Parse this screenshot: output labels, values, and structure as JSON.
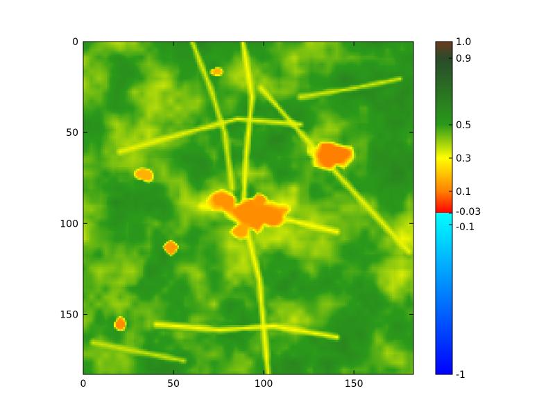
{
  "chart_data": {
    "type": "heatmap",
    "title": "",
    "xlabel": "",
    "ylabel": "",
    "grid": false,
    "image_size": [
      183,
      183
    ],
    "xlim": [
      0,
      183
    ],
    "ylim": [
      183,
      0
    ],
    "xticks": [
      {
        "value": 0,
        "label": "0"
      },
      {
        "value": 50,
        "label": "50"
      },
      {
        "value": 100,
        "label": "100"
      },
      {
        "value": 150,
        "label": "150"
      }
    ],
    "yticks": [
      {
        "value": 0,
        "label": "0"
      },
      {
        "value": 50,
        "label": "50"
      },
      {
        "value": 100,
        "label": "100"
      },
      {
        "value": 150,
        "label": "150"
      }
    ],
    "colorbar": {
      "placement": "right",
      "range": [
        -1,
        1
      ],
      "ticks": [
        {
          "value": 1.0,
          "label": "1.0"
        },
        {
          "value": 0.9,
          "label": "0.9"
        },
        {
          "value": 0.5,
          "label": "0.5"
        },
        {
          "value": 0.3,
          "label": "0.3"
        },
        {
          "value": 0.1,
          "label": "0.1"
        },
        {
          "value": -0.03,
          "label": "-0.03"
        },
        {
          "value": -0.1,
          "label": "-0.1"
        },
        {
          "value": -1,
          "label": "-1"
        }
      ],
      "stops": [
        {
          "value": -1.0,
          "color": "#0000ff"
        },
        {
          "value": -0.03,
          "color": "#00ffff"
        },
        {
          "value": -0.0301,
          "color": "#ff0000"
        },
        {
          "value": 0.1,
          "color": "#ff8000"
        },
        {
          "value": 0.3,
          "color": "#ffff00"
        },
        {
          "value": 0.5,
          "color": "#2a9a1a"
        },
        {
          "value": 0.9,
          "color": "#2a4a2a"
        },
        {
          "value": 1.0,
          "color": "#6b3b1f"
        }
      ]
    },
    "features": [
      {
        "type": "road",
        "points": [
          [
            98,
            25
          ],
          [
            140,
            72
          ],
          [
            180,
            115
          ]
        ],
        "value": 0.32
      },
      {
        "type": "road",
        "points": [
          [
            88,
            0
          ],
          [
            93,
            30
          ],
          [
            90,
            60
          ],
          [
            88,
            95
          ],
          [
            97,
            130
          ],
          [
            102,
            183
          ]
        ],
        "value": 0.3
      },
      {
        "type": "road",
        "points": [
          [
            65,
            90
          ],
          [
            90,
            94
          ],
          [
            115,
            98
          ],
          [
            140,
            104
          ]
        ],
        "value": 0.3
      },
      {
        "type": "road",
        "points": [
          [
            40,
            155
          ],
          [
            75,
            158
          ],
          [
            105,
            156
          ],
          [
            140,
            162
          ]
        ],
        "value": 0.3
      },
      {
        "type": "road",
        "points": [
          [
            20,
            60
          ],
          [
            55,
            50
          ],
          [
            85,
            42
          ],
          [
            120,
            45
          ]
        ],
        "value": 0.32
      },
      {
        "type": "road",
        "points": [
          [
            60,
            0
          ],
          [
            70,
            25
          ],
          [
            78,
            50
          ],
          [
            82,
            80
          ]
        ],
        "value": 0.33
      },
      {
        "type": "road",
        "points": [
          [
            5,
            165
          ],
          [
            30,
            170
          ],
          [
            55,
            175
          ]
        ],
        "value": 0.35
      },
      {
        "type": "road",
        "points": [
          [
            120,
            30
          ],
          [
            150,
            25
          ],
          [
            175,
            20
          ]
        ],
        "value": 0.34
      },
      {
        "type": "patch",
        "center": [
          137,
          62
        ],
        "size": [
          14,
          8
        ],
        "value": 0.1
      },
      {
        "type": "patch",
        "center": [
          95,
          94
        ],
        "size": [
          18,
          10
        ],
        "value": 0.12
      },
      {
        "type": "patch",
        "center": [
          78,
          87
        ],
        "size": [
          9,
          6
        ],
        "value": 0.13
      },
      {
        "type": "patch",
        "center": [
          105,
          96
        ],
        "size": [
          8,
          6
        ],
        "value": 0.12
      },
      {
        "type": "patch",
        "center": [
          87,
          104
        ],
        "size": [
          6,
          6
        ],
        "value": 0.16
      },
      {
        "type": "patch",
        "center": [
          20,
          155
        ],
        "size": [
          4,
          4
        ],
        "value": 0.12
      },
      {
        "type": "patch",
        "center": [
          48,
          113
        ],
        "size": [
          4,
          4
        ],
        "value": 0.14
      },
      {
        "type": "patch",
        "center": [
          33,
          73
        ],
        "size": [
          6,
          4
        ],
        "value": 0.18
      },
      {
        "type": "patch",
        "center": [
          73,
          16
        ],
        "size": [
          4,
          3
        ],
        "value": 0.18
      },
      {
        "type": "patch",
        "center": [
          98,
          87
        ],
        "size": [
          5,
          4
        ],
        "value": 0.13
      }
    ]
  }
}
